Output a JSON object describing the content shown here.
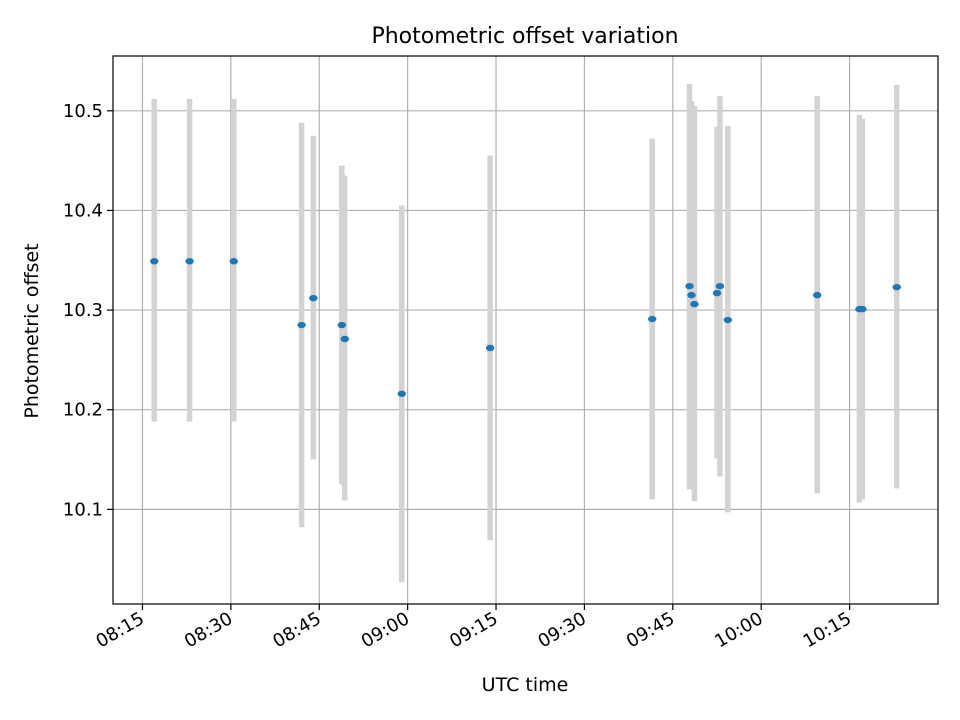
{
  "chart_data": {
    "type": "scatter",
    "title": "Photometric offset variation",
    "xlabel": "UTC time",
    "ylabel": "Photometric offset",
    "x_axis": "time",
    "xlim": [
      "08:10",
      "10:30"
    ],
    "ylim": [
      10.005,
      10.555
    ],
    "x_ticks": [
      "08:15",
      "08:30",
      "08:45",
      "09:00",
      "09:15",
      "09:30",
      "09:45",
      "10:00",
      "10:15"
    ],
    "y_ticks": [
      "10.1",
      "10.2",
      "10.3",
      "10.4",
      "10.5"
    ],
    "grid": true,
    "point_color": "#1f77b4",
    "errorbar_color": "#d3d3d3",
    "points": [
      {
        "t": "08:17:00",
        "y": 10.349,
        "err_low": 10.188,
        "err_high": 10.512
      },
      {
        "t": "08:23:00",
        "y": 10.349,
        "err_low": 10.188,
        "err_high": 10.512
      },
      {
        "t": "08:30:30",
        "y": 10.349,
        "err_low": 10.188,
        "err_high": 10.512
      },
      {
        "t": "08:42:00",
        "y": 10.285,
        "err_low": 10.082,
        "err_high": 10.488
      },
      {
        "t": "08:44:00",
        "y": 10.312,
        "err_low": 10.15,
        "err_high": 10.475
      },
      {
        "t": "08:48:50",
        "y": 10.285,
        "err_low": 10.125,
        "err_high": 10.445
      },
      {
        "t": "08:49:20",
        "y": 10.271,
        "err_low": 10.109,
        "err_high": 10.435
      },
      {
        "t": "08:59:00",
        "y": 10.216,
        "err_low": 10.027,
        "err_high": 10.405
      },
      {
        "t": "09:14:00",
        "y": 10.262,
        "err_low": 10.069,
        "err_high": 10.455
      },
      {
        "t": "09:41:30",
        "y": 10.291,
        "err_low": 10.11,
        "err_high": 10.472
      },
      {
        "t": "09:47:50",
        "y": 10.324,
        "err_low": 10.12,
        "err_high": 10.527
      },
      {
        "t": "09:48:10",
        "y": 10.315,
        "err_low": 10.122,
        "err_high": 10.51
      },
      {
        "t": "09:48:40",
        "y": 10.306,
        "err_low": 10.108,
        "err_high": 10.505
      },
      {
        "t": "09:52:30",
        "y": 10.317,
        "err_low": 10.151,
        "err_high": 10.484
      },
      {
        "t": "09:53:00",
        "y": 10.324,
        "err_low": 10.133,
        "err_high": 10.515
      },
      {
        "t": "09:54:20",
        "y": 10.29,
        "err_low": 10.097,
        "err_high": 10.485
      },
      {
        "t": "10:09:30",
        "y": 10.315,
        "err_low": 10.116,
        "err_high": 10.515
      },
      {
        "t": "10:16:40",
        "y": 10.301,
        "err_low": 10.107,
        "err_high": 10.496
      },
      {
        "t": "10:17:10",
        "y": 10.301,
        "err_low": 10.11,
        "err_high": 10.492
      },
      {
        "t": "10:23:00",
        "y": 10.323,
        "err_low": 10.121,
        "err_high": 10.526
      }
    ]
  }
}
